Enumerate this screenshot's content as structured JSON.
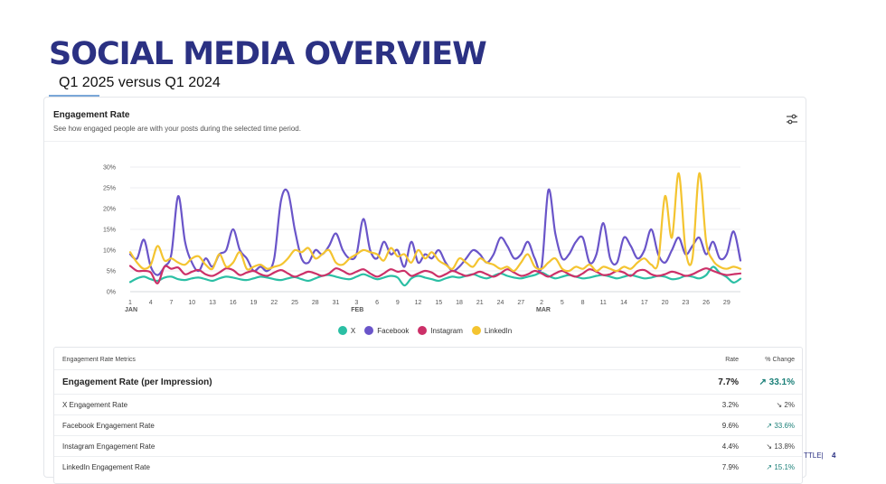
{
  "slide": {
    "title": "SOCIAL MEDIA OVERVIEW",
    "subtitle": "Q1 2025 versus Q1 2024",
    "footer_text": "TTLE|",
    "page_number": "4"
  },
  "card": {
    "title": "Engagement Rate",
    "description": "See how engaged people are with your posts during the selected time period.",
    "settings_icon": "sliders-icon"
  },
  "chart_data": {
    "type": "line",
    "title": "Engagement Rate",
    "ylim": [
      0,
      30
    ],
    "y_ticks": [
      "0%",
      "5%",
      "10%",
      "15%",
      "20%",
      "25%",
      "30%"
    ],
    "y_tick_values": [
      0,
      5,
      10,
      15,
      20,
      25,
      30
    ],
    "x_range": [
      1,
      90
    ],
    "x_ticks": [
      {
        "day": 1,
        "label": "1"
      },
      {
        "day": 4,
        "label": "4"
      },
      {
        "day": 7,
        "label": "7"
      },
      {
        "day": 10,
        "label": "10"
      },
      {
        "day": 13,
        "label": "13"
      },
      {
        "day": 16,
        "label": "16"
      },
      {
        "day": 19,
        "label": "19"
      },
      {
        "day": 22,
        "label": "22"
      },
      {
        "day": 25,
        "label": "25"
      },
      {
        "day": 28,
        "label": "28"
      },
      {
        "day": 31,
        "label": "31"
      },
      {
        "day": 34,
        "label": "3"
      },
      {
        "day": 37,
        "label": "6"
      },
      {
        "day": 40,
        "label": "9"
      },
      {
        "day": 43,
        "label": "12"
      },
      {
        "day": 46,
        "label": "15"
      },
      {
        "day": 49,
        "label": "18"
      },
      {
        "day": 52,
        "label": "21"
      },
      {
        "day": 55,
        "label": "24"
      },
      {
        "day": 58,
        "label": "27"
      },
      {
        "day": 61,
        "label": "2"
      },
      {
        "day": 64,
        "label": "5"
      },
      {
        "day": 67,
        "label": "8"
      },
      {
        "day": 70,
        "label": "11"
      },
      {
        "day": 73,
        "label": "14"
      },
      {
        "day": 76,
        "label": "17"
      },
      {
        "day": 79,
        "label": "20"
      },
      {
        "day": 82,
        "label": "23"
      },
      {
        "day": 85,
        "label": "26"
      },
      {
        "day": 88,
        "label": "29"
      }
    ],
    "months": [
      {
        "day": 1,
        "label": "JAN"
      },
      {
        "day": 34,
        "label": "FEB"
      },
      {
        "day": 61,
        "label": "MAR"
      }
    ],
    "series": [
      {
        "name": "X",
        "color": "#2bbfa4",
        "values": [
          2.3,
          3.2,
          3.6,
          3.0,
          2.6,
          3.4,
          3.6,
          3.0,
          2.8,
          3.2,
          3.4,
          3.0,
          2.6,
          3.2,
          3.6,
          3.4,
          3.0,
          2.8,
          3.2,
          3.6,
          3.4,
          3.0,
          2.8,
          3.2,
          3.5,
          3.0,
          2.6,
          3.2,
          3.8,
          4.0,
          3.6,
          3.2,
          3.0,
          3.6,
          4.2,
          3.6,
          3.0,
          3.4,
          3.8,
          3.4,
          1.5,
          3.2,
          3.8,
          3.4,
          3.0,
          2.6,
          3.2,
          3.6,
          3.4,
          3.8,
          4.2,
          3.6,
          3.2,
          3.8,
          4.4,
          3.8,
          3.4,
          3.2,
          3.6,
          4.0,
          4.6,
          3.8,
          3.2,
          3.6,
          4.0,
          3.6,
          3.2,
          3.4,
          3.8,
          4.0,
          3.6,
          3.2,
          3.6,
          4.0,
          3.6,
          3.2,
          3.4,
          3.8,
          3.6,
          3.0,
          3.2,
          3.8,
          3.6,
          3.2,
          4.0,
          6.0,
          4.5,
          3.5,
          2.2,
          3.1
        ]
      },
      {
        "name": "Facebook",
        "color": "#6a55c9",
        "values": [
          9.0,
          8.0,
          12.5,
          6.0,
          4.0,
          6.0,
          9.0,
          23.0,
          12.0,
          7.0,
          5.0,
          8.0,
          6.0,
          9.0,
          10.0,
          15.0,
          10.0,
          8.0,
          5.0,
          6.0,
          5.0,
          8.0,
          22.0,
          24.0,
          15.0,
          8.0,
          7.0,
          10.0,
          9.0,
          11.0,
          14.0,
          10.0,
          8.0,
          9.0,
          17.5,
          10.0,
          8.0,
          12.0,
          9.0,
          10.0,
          6.0,
          12.0,
          7.0,
          9.0,
          8.0,
          10.0,
          7.0,
          5.0,
          6.0,
          8.0,
          10.0,
          9.0,
          7.0,
          9.0,
          13.0,
          11.0,
          8.0,
          9.0,
          12.0,
          8.0,
          6.0,
          24.5,
          14.0,
          8.0,
          9.0,
          12.0,
          13.0,
          7.0,
          9.0,
          16.5,
          8.0,
          7.0,
          13.0,
          11.0,
          8.0,
          10.0,
          15.0,
          9.0,
          7.0,
          10.0,
          13.0,
          9.0,
          11.0,
          13.0,
          9.0,
          12.0,
          8.0,
          9.0,
          14.5,
          7.5
        ]
      },
      {
        "name": "Instagram",
        "color": "#cc3068",
        "values": [
          6.2,
          5.0,
          5.0,
          4.6,
          2.0,
          6.0,
          5.5,
          5.8,
          4.2,
          4.8,
          5.2,
          4.2,
          3.8,
          4.6,
          5.6,
          5.2,
          4.0,
          4.6,
          5.0,
          4.2,
          3.8,
          4.6,
          5.2,
          4.4,
          3.6,
          4.2,
          4.8,
          4.4,
          3.8,
          4.4,
          5.6,
          5.0,
          4.2,
          4.8,
          5.4,
          4.4,
          3.6,
          4.4,
          5.4,
          4.8,
          5.0,
          3.8,
          4.4,
          5.0,
          4.6,
          3.6,
          4.2,
          5.0,
          4.4,
          3.8,
          4.2,
          4.8,
          4.2,
          3.6,
          4.4,
          5.4,
          4.6,
          3.8,
          4.2,
          5.0,
          4.4,
          3.6,
          4.4,
          5.0,
          4.2,
          3.6,
          4.4,
          5.4,
          4.8,
          4.0,
          4.2,
          5.0,
          4.6,
          3.8,
          5.0,
          5.2,
          4.2,
          3.8,
          4.2,
          4.8,
          4.4,
          3.8,
          4.2,
          5.0,
          5.6,
          5.0,
          4.4,
          4.0,
          4.2,
          4.4
        ]
      },
      {
        "name": "LinkedIn",
        "color": "#f4c430",
        "values": [
          9.5,
          7.0,
          5.5,
          6.5,
          11.0,
          7.5,
          8.0,
          7.0,
          6.5,
          8.0,
          8.5,
          6.5,
          5.5,
          9.0,
          6.0,
          7.0,
          9.5,
          5.5,
          6.0,
          6.5,
          5.5,
          6.0,
          6.5,
          8.0,
          10.0,
          9.5,
          10.5,
          8.0,
          9.0,
          10.0,
          7.0,
          6.5,
          8.0,
          9.0,
          10.0,
          9.5,
          9.0,
          7.5,
          10.5,
          8.5,
          9.0,
          7.0,
          10.0,
          8.0,
          9.5,
          7.5,
          6.5,
          5.5,
          8.0,
          7.0,
          6.0,
          8.0,
          7.0,
          6.5,
          5.5,
          6.0,
          5.0,
          7.0,
          9.0,
          6.0,
          5.5,
          7.0,
          8.0,
          5.5,
          5.0,
          6.0,
          5.5,
          6.5,
          5.0,
          6.0,
          5.5,
          5.0,
          6.0,
          5.5,
          7.0,
          8.0,
          6.5,
          7.0,
          23.0,
          13.0,
          28.5,
          10.0,
          8.0,
          28.5,
          12.0,
          7.5,
          6.0,
          5.5,
          6.0,
          5.5
        ]
      }
    ]
  },
  "metrics": {
    "header_label": "Engagement Rate Metrics",
    "header_rate": "Rate",
    "header_change": "% Change",
    "main": {
      "label": "Engagement Rate (per Impression)",
      "rate": "7.7%",
      "change": "↗ 33.1%"
    },
    "rows": [
      {
        "label": "X Engagement Rate",
        "rate": "3.2%",
        "change": "↘ 2%"
      },
      {
        "label": "Facebook Engagement Rate",
        "rate": "9.6%",
        "change": "↗ 33.6%"
      },
      {
        "label": "Instagram Engagement Rate",
        "rate": "4.4%",
        "change": "↘ 13.8%"
      },
      {
        "label": "LinkedIn Engagement Rate",
        "rate": "7.9%",
        "change": "↗ 15.1%"
      }
    ]
  }
}
